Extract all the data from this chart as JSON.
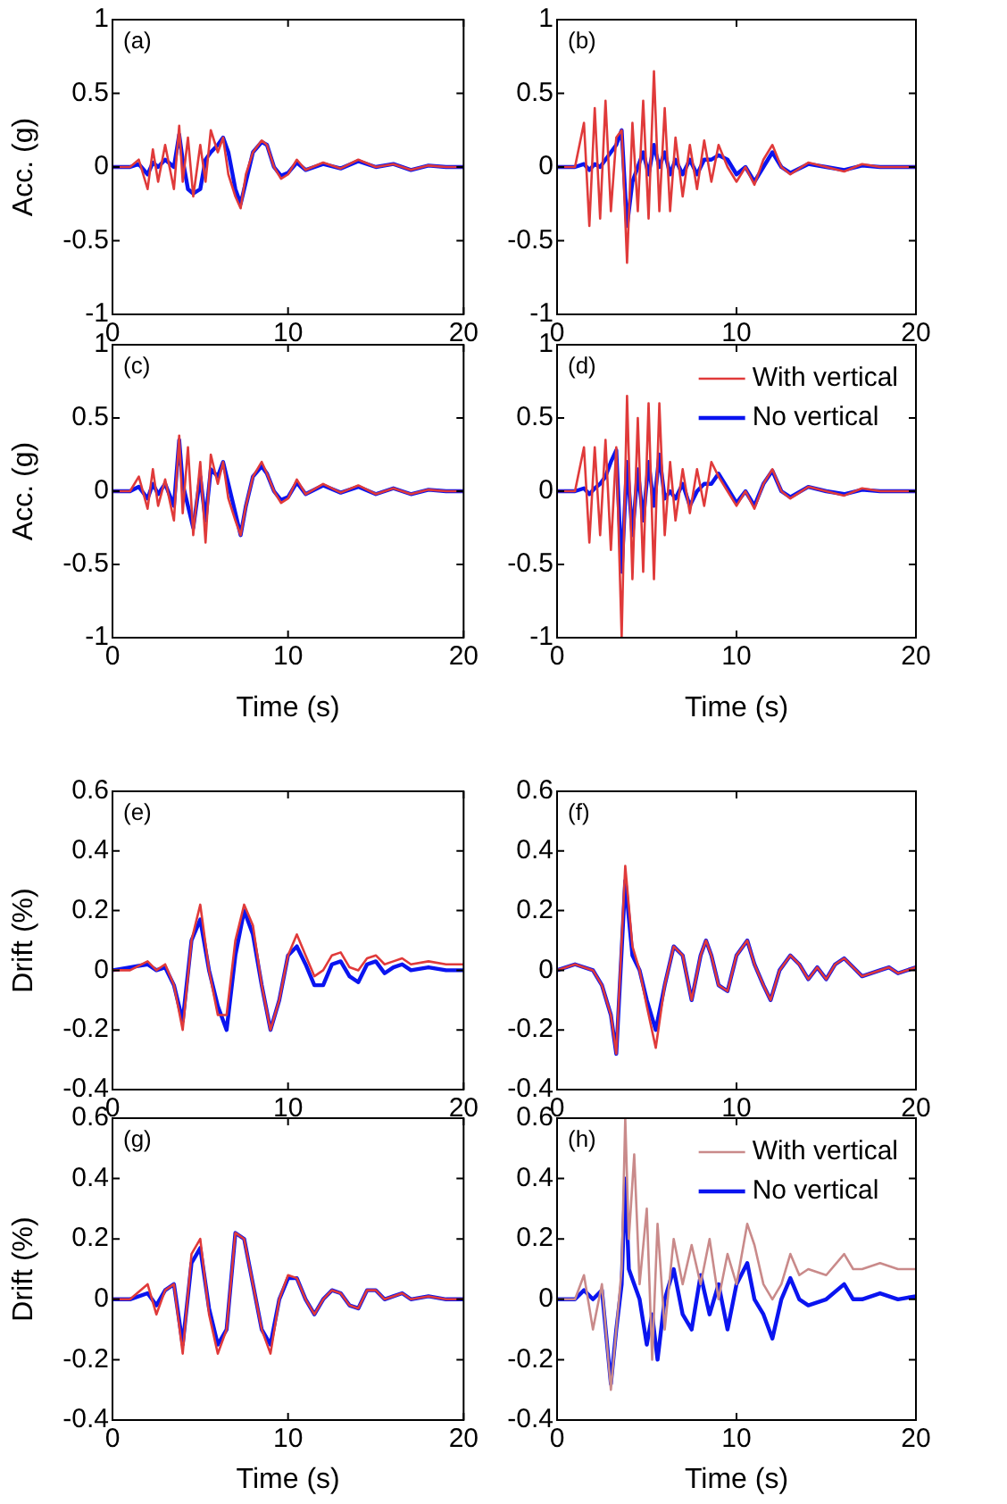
{
  "chart_data": [
    {
      "type": "line",
      "annotations": [
        "(a)"
      ],
      "ylabel": "Acc. (g)",
      "xlim": [
        0,
        20
      ],
      "xticks": [
        0,
        10,
        20
      ],
      "ylim": [
        -1,
        1
      ],
      "yticks": [
        -1,
        -0.5,
        0,
        0.5,
        1
      ],
      "grid": false,
      "x": [
        0,
        1,
        1.5,
        2,
        2.3,
        2.6,
        3,
        3.5,
        3.8,
        4,
        4.3,
        4.6,
        5,
        5.3,
        5.6,
        6,
        6.3,
        6.6,
        7,
        7.3,
        7.6,
        8,
        8.5,
        8.8,
        9.2,
        9.6,
        10,
        10.5,
        11,
        12,
        13,
        14,
        15,
        16,
        17,
        18,
        19,
        20
      ],
      "series": [
        {
          "color": "#e03a3a",
          "values": [
            0,
            0,
            0.05,
            -0.15,
            0.12,
            -0.1,
            0.15,
            -0.15,
            0.28,
            -0.1,
            0.2,
            -0.2,
            0.15,
            -0.1,
            0.25,
            0.1,
            0.2,
            -0.05,
            -0.2,
            -0.28,
            -0.05,
            0.1,
            0.18,
            0.15,
            0,
            -0.08,
            -0.05,
            0.05,
            -0.02,
            0.03,
            -0.01,
            0.05,
            0,
            0.02,
            -0.02,
            0.01,
            0,
            0
          ]
        },
        {
          "color": "#0a14f0",
          "values": [
            0,
            0,
            0.02,
            -0.05,
            0.03,
            0,
            0.05,
            0,
            0.22,
            0.05,
            -0.15,
            -0.18,
            -0.15,
            0.05,
            0.1,
            0.15,
            0.2,
            0.1,
            -0.15,
            -0.25,
            -0.1,
            0.1,
            0.17,
            0.15,
            0,
            -0.06,
            -0.04,
            0.03,
            -0.02,
            0.02,
            -0.01,
            0.04,
            0,
            0.02,
            -0.02,
            0.01,
            0,
            0
          ]
        }
      ]
    },
    {
      "type": "line",
      "annotations": [
        "(b)"
      ],
      "xlim": [
        0,
        20
      ],
      "xticks": [
        0,
        10,
        20
      ],
      "ylim": [
        -1,
        1
      ],
      "yticks": [
        -1,
        -0.5,
        0,
        0.5,
        1
      ],
      "grid": false,
      "x": [
        0,
        1,
        1.5,
        1.8,
        2.1,
        2.4,
        2.7,
        3,
        3.3,
        3.6,
        3.9,
        4.2,
        4.5,
        4.8,
        5.1,
        5.4,
        5.7,
        6,
        6.3,
        6.6,
        7,
        7.4,
        7.8,
        8.2,
        8.6,
        9,
        9.5,
        10,
        10.5,
        11,
        11.5,
        12,
        12.5,
        13,
        14,
        15,
        16,
        17,
        18,
        20
      ],
      "series": [
        {
          "color": "#e03a3a",
          "values": [
            0,
            0,
            0.3,
            -0.4,
            0.4,
            -0.35,
            0.45,
            -0.3,
            0.2,
            0.25,
            -0.65,
            0.3,
            -0.3,
            0.45,
            -0.35,
            0.65,
            -0.3,
            0.4,
            -0.3,
            0.2,
            -0.2,
            0.15,
            -0.15,
            0.18,
            -0.1,
            0.15,
            0,
            -0.1,
            0,
            -0.12,
            0.05,
            0.15,
            0,
            -0.05,
            0.03,
            0,
            -0.03,
            0.02,
            0,
            0
          ]
        },
        {
          "color": "#0a14f0",
          "values": [
            0,
            0,
            0.02,
            -0.02,
            0.02,
            0,
            0.05,
            0.1,
            0.15,
            0.25,
            -0.4,
            -0.1,
            0,
            0.1,
            -0.05,
            0.15,
            0,
            0.1,
            -0.05,
            0.05,
            -0.05,
            0.05,
            -0.05,
            0.05,
            0.05,
            0.08,
            0.05,
            -0.05,
            0,
            -0.1,
            0,
            0.1,
            0,
            -0.04,
            0.02,
            0,
            -0.02,
            0.01,
            0,
            0
          ]
        }
      ]
    },
    {
      "type": "line",
      "annotations": [
        "(c)"
      ],
      "ylabel": "Acc. (g)",
      "xlabel": "Time (s)",
      "xlim": [
        0,
        20
      ],
      "xticks": [
        0,
        10,
        20
      ],
      "ylim": [
        -1,
        1
      ],
      "yticks": [
        -1,
        -0.5,
        0,
        0.5,
        1
      ],
      "grid": false,
      "x": [
        0,
        1,
        1.5,
        2,
        2.3,
        2.6,
        3,
        3.5,
        3.8,
        4,
        4.3,
        4.6,
        5,
        5.3,
        5.6,
        6,
        6.3,
        6.6,
        7,
        7.3,
        7.6,
        8,
        8.5,
        8.8,
        9.2,
        9.6,
        10,
        10.5,
        11,
        12,
        13,
        14,
        15,
        16,
        17,
        18,
        19,
        20
      ],
      "series": [
        {
          "color": "#e03a3a",
          "values": [
            0,
            0,
            0.1,
            -0.12,
            0.15,
            -0.1,
            0.08,
            -0.2,
            0.38,
            -0.15,
            0.3,
            -0.3,
            0.2,
            -0.35,
            0.25,
            0.05,
            0.2,
            -0.05,
            -0.2,
            -0.3,
            -0.1,
            0.1,
            0.2,
            0.12,
            0,
            -0.08,
            -0.05,
            0.08,
            -0.02,
            0.05,
            -0.01,
            0.04,
            -0.02,
            0.02,
            -0.02,
            0.01,
            0,
            0
          ]
        },
        {
          "color": "#0a14f0",
          "values": [
            0,
            0,
            0.03,
            -0.05,
            0.05,
            -0.02,
            0.05,
            -0.1,
            0.35,
            0.05,
            -0.1,
            -0.25,
            0.1,
            -0.2,
            0.15,
            0.1,
            0.2,
            0.05,
            -0.15,
            -0.3,
            -0.1,
            0.1,
            0.17,
            0.12,
            0,
            -0.06,
            -0.04,
            0.06,
            -0.02,
            0.04,
            -0.01,
            0.03,
            -0.02,
            0.02,
            -0.02,
            0.01,
            0,
            0
          ]
        }
      ]
    },
    {
      "type": "line",
      "annotations": [
        "(d)"
      ],
      "xlabel": "Time (s)",
      "xlim": [
        0,
        20
      ],
      "xticks": [
        0,
        10,
        20
      ],
      "ylim": [
        -1,
        1
      ],
      "yticks": [
        -1,
        -0.5,
        0,
        0.5,
        1
      ],
      "grid": false,
      "legend": "top right",
      "x": [
        0,
        1,
        1.5,
        1.8,
        2.1,
        2.4,
        2.7,
        3,
        3.3,
        3.6,
        3.9,
        4.2,
        4.5,
        4.8,
        5.1,
        5.4,
        5.7,
        6,
        6.3,
        6.6,
        7,
        7.4,
        7.8,
        8.2,
        8.6,
        9,
        9.5,
        10,
        10.5,
        11,
        11.5,
        12,
        12.5,
        13,
        14,
        15,
        16,
        17,
        18,
        20
      ],
      "series": [
        {
          "name": "With vertical",
          "color": "#e03a3a",
          "values": [
            0,
            0,
            0.3,
            -0.35,
            0.3,
            -0.3,
            0.35,
            -0.4,
            0.3,
            -1,
            0.65,
            -0.6,
            0.5,
            -0.55,
            0.6,
            -0.6,
            0.6,
            -0.3,
            0.2,
            -0.2,
            0.15,
            -0.15,
            0.15,
            -0.1,
            0.2,
            0.1,
            0,
            -0.1,
            0,
            -0.12,
            0.05,
            0.15,
            0,
            -0.05,
            0.03,
            0,
            -0.03,
            0.02,
            0,
            0
          ]
        },
        {
          "name": "No vertical",
          "color": "#0a14f0",
          "values": [
            0,
            0,
            0.02,
            -0.02,
            0.02,
            0.05,
            0.1,
            0.2,
            0.28,
            -0.55,
            0.2,
            -0.3,
            0.15,
            -0.2,
            0.2,
            -0.1,
            0.25,
            -0.05,
            0,
            -0.05,
            0.05,
            -0.1,
            0,
            0.05,
            0.05,
            0.12,
            0.02,
            -0.08,
            0,
            -0.1,
            0.05,
            0.14,
            0,
            -0.04,
            0.03,
            0,
            -0.02,
            0.01,
            0,
            0
          ]
        }
      ]
    },
    {
      "type": "line",
      "annotations": [
        "(e)"
      ],
      "ylabel": "Drift (%)",
      "xlim": [
        0,
        20
      ],
      "xticks": [
        0,
        10,
        20
      ],
      "ylim": [
        -0.4,
        0.6
      ],
      "yticks": [
        -0.4,
        -0.2,
        0,
        0.2,
        0.4,
        0.6
      ],
      "grid": false,
      "x": [
        0,
        1,
        2,
        2.5,
        3,
        3.5,
        4,
        4.5,
        5,
        5.5,
        6,
        6.5,
        7,
        7.5,
        8,
        8.5,
        9,
        9.5,
        10,
        10.5,
        11,
        11.5,
        12,
        12.5,
        13,
        13.5,
        14,
        14.5,
        15,
        15.5,
        16,
        16.5,
        17,
        18,
        19,
        20
      ],
      "series": [
        {
          "color": "#e03a3a",
          "values": [
            0,
            0,
            0.03,
            0,
            0.02,
            -0.05,
            -0.2,
            0.1,
            0.22,
            0,
            -0.15,
            -0.15,
            0.1,
            0.22,
            0.15,
            -0.05,
            -0.2,
            -0.1,
            0.05,
            0.12,
            0.05,
            -0.02,
            0,
            0.05,
            0.06,
            0.01,
            0,
            0.04,
            0.05,
            0.02,
            0.03,
            0.04,
            0.02,
            0.03,
            0.02,
            0.02
          ]
        },
        {
          "color": "#0a14f0",
          "values": [
            0,
            0.01,
            0.02,
            0,
            0.01,
            -0.05,
            -0.17,
            0.1,
            0.17,
            0,
            -0.12,
            -0.2,
            0.05,
            0.2,
            0.12,
            -0.05,
            -0.2,
            -0.1,
            0.05,
            0.08,
            0.02,
            -0.05,
            -0.05,
            0.02,
            0.03,
            -0.02,
            -0.04,
            0.02,
            0.03,
            -0.01,
            0.01,
            0.02,
            0,
            0.01,
            0,
            0
          ]
        }
      ]
    },
    {
      "type": "line",
      "annotations": [
        "(f)"
      ],
      "xlim": [
        0,
        20
      ],
      "xticks": [
        0,
        10,
        20
      ],
      "ylim": [
        -0.4,
        0.6
      ],
      "yticks": [
        -0.4,
        -0.2,
        0,
        0.2,
        0.4,
        0.6
      ],
      "grid": false,
      "x": [
        0,
        1,
        2,
        2.5,
        3,
        3.3,
        3.8,
        4.2,
        4.6,
        5,
        5.5,
        6,
        6.5,
        7,
        7.5,
        8,
        8.3,
        8.6,
        9,
        9.5,
        10,
        10.6,
        11,
        11.5,
        11.9,
        12.4,
        13,
        13.5,
        14,
        14.5,
        15,
        15.5,
        16,
        16.5,
        17,
        18,
        18.5,
        19,
        20
      ],
      "series": [
        {
          "color": "#e03a3a",
          "values": [
            0,
            0.02,
            0,
            -0.05,
            -0.15,
            -0.28,
            0.35,
            0.08,
            0,
            -0.12,
            -0.26,
            -0.05,
            0.08,
            0.05,
            -0.1,
            0.05,
            0.1,
            0.05,
            -0.05,
            -0.07,
            0.05,
            0.1,
            0.02,
            -0.05,
            -0.1,
            0,
            0.05,
            0.02,
            -0.03,
            0.01,
            -0.03,
            0.02,
            0.04,
            0.01,
            -0.02,
            0,
            0.01,
            -0.01,
            0.01
          ]
        },
        {
          "color": "#0a14f0",
          "values": [
            0,
            0.02,
            0,
            -0.05,
            -0.15,
            -0.28,
            0.3,
            0.05,
            0,
            -0.1,
            -0.2,
            -0.05,
            0.08,
            0.05,
            -0.1,
            0.05,
            0.1,
            0.05,
            -0.05,
            -0.07,
            0.05,
            0.1,
            0.02,
            -0.05,
            -0.1,
            0,
            0.05,
            0.02,
            -0.03,
            0.01,
            -0.03,
            0.02,
            0.04,
            0.01,
            -0.02,
            0,
            0.01,
            -0.01,
            0.01
          ]
        }
      ]
    },
    {
      "type": "line",
      "annotations": [
        "(g)"
      ],
      "ylabel": "Drift (%)",
      "xlabel": "Time (s)",
      "xlim": [
        0,
        20
      ],
      "xticks": [
        0,
        10,
        20
      ],
      "ylim": [
        -0.4,
        0.6
      ],
      "yticks": [
        -0.4,
        -0.2,
        0,
        0.2,
        0.4,
        0.6
      ],
      "grid": false,
      "x": [
        0,
        1,
        2,
        2.5,
        3,
        3.5,
        4,
        4.5,
        5,
        5.5,
        6,
        6.5,
        7,
        7.5,
        8,
        8.5,
        9,
        9.5,
        10,
        10.5,
        11,
        11.5,
        12,
        12.5,
        13,
        13.5,
        14,
        14.5,
        15,
        15.5,
        16,
        16.5,
        17,
        18,
        19,
        20
      ],
      "series": [
        {
          "color": "#e03a3a",
          "values": [
            0,
            0,
            0.05,
            -0.05,
            0.03,
            0.05,
            -0.18,
            0.15,
            0.2,
            -0.05,
            -0.18,
            -0.1,
            0.22,
            0.2,
            0.05,
            -0.1,
            -0.18,
            0,
            0.08,
            0.07,
            0,
            -0.05,
            0,
            0.03,
            0.02,
            -0.02,
            -0.03,
            0.03,
            0.03,
            0,
            0.01,
            0.02,
            0,
            0.01,
            0,
            0
          ]
        },
        {
          "color": "#0a14f0",
          "values": [
            0,
            0,
            0.02,
            -0.02,
            0.03,
            0.05,
            -0.15,
            0.12,
            0.17,
            -0.03,
            -0.15,
            -0.1,
            0.22,
            0.2,
            0.05,
            -0.1,
            -0.15,
            0,
            0.07,
            0.07,
            0,
            -0.05,
            0,
            0.03,
            0.02,
            -0.02,
            -0.03,
            0.03,
            0.03,
            0,
            0.01,
            0.02,
            0,
            0.01,
            0,
            0
          ]
        }
      ]
    },
    {
      "type": "line",
      "annotations": [
        "(h)"
      ],
      "xlabel": "Time (s)",
      "xlim": [
        0,
        20
      ],
      "xticks": [
        0,
        10,
        20
      ],
      "ylim": [
        -0.4,
        0.6
      ],
      "yticks": [
        -0.4,
        -0.2,
        0,
        0.2,
        0.4,
        0.6
      ],
      "grid": false,
      "legend": "top right",
      "x": [
        0,
        1,
        1.5,
        2,
        2.5,
        3,
        3.3,
        3.6,
        3.8,
        4,
        4.3,
        4.6,
        5,
        5.3,
        5.6,
        6,
        6.5,
        7,
        7.5,
        8,
        8.5,
        9,
        9.5,
        10,
        10.6,
        11,
        11.5,
        12,
        12.5,
        13,
        13.5,
        14,
        15,
        16,
        16.5,
        17,
        18,
        19,
        20
      ],
      "series": [
        {
          "name": "With vertical",
          "color": "#c98a8a",
          "values": [
            0,
            0,
            0.08,
            -0.1,
            0.05,
            -0.3,
            -0.1,
            0.1,
            0.6,
            0.2,
            0.48,
            0.05,
            0.3,
            -0.2,
            0.25,
            -0.1,
            0.2,
            0.05,
            0.18,
            0.05,
            0.2,
            0,
            0.15,
            0.05,
            0.25,
            0.18,
            0.05,
            0,
            0.05,
            0.15,
            0.08,
            0.1,
            0.08,
            0.15,
            0.1,
            0.1,
            0.12,
            0.1,
            0.1
          ]
        },
        {
          "name": "No vertical",
          "color": "#0a14f0",
          "values": [
            0,
            0,
            0.03,
            0,
            0.03,
            -0.28,
            -0.1,
            0.05,
            0.4,
            0.1,
            0.05,
            0,
            -0.15,
            -0.05,
            -0.2,
            0,
            0.1,
            -0.05,
            -0.1,
            0.08,
            -0.05,
            0.05,
            -0.1,
            0.05,
            0.12,
            0,
            -0.05,
            -0.13,
            0,
            0.07,
            0,
            -0.02,
            0,
            0.05,
            0,
            0,
            0.02,
            0,
            0.01
          ]
        }
      ]
    }
  ]
}
